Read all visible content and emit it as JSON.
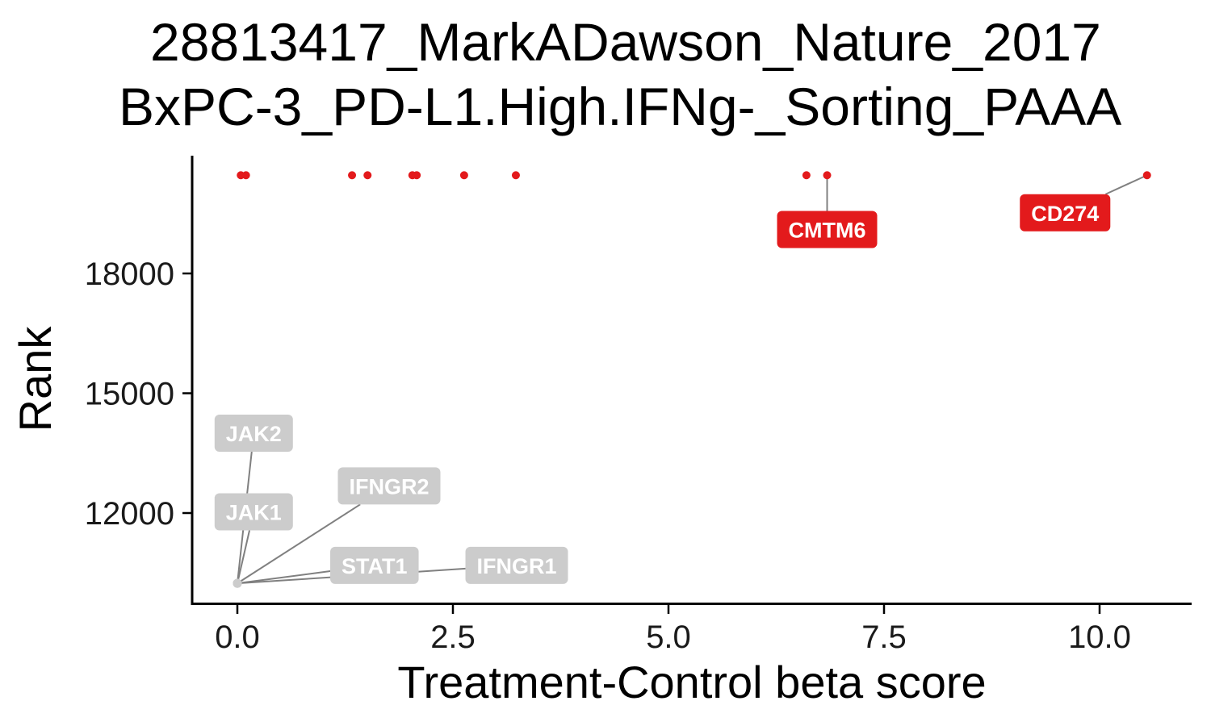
{
  "chart_data": {
    "type": "scatter",
    "title_lines": [
      "28813417_MarkADawson_Nature_2017",
      "BxPC-3_PD-L1.High.IFNg-_Sorting_PAAA"
    ],
    "xlabel": "Treatment-Control beta score",
    "ylabel": "Rank",
    "xlim": [
      -0.1,
      11.1
    ],
    "ylim": [
      9500,
      20400
    ],
    "x_ticks": [
      {
        "value": 0.0,
        "label": "0.0"
      },
      {
        "value": 2.5,
        "label": "2.5"
      },
      {
        "value": 5.0,
        "label": "5.0"
      },
      {
        "value": 7.5,
        "label": "7.5"
      },
      {
        "value": 10.0,
        "label": "10.0"
      }
    ],
    "y_ticks": [
      {
        "value": 12000,
        "label": "12000"
      },
      {
        "value": 15000,
        "label": "15000"
      },
      {
        "value": 18000,
        "label": "18000"
      }
    ],
    "grid": false,
    "colors": {
      "high": "#e31a1c",
      "low": "#cccccc",
      "connector": "#808080",
      "axis": "#000000"
    },
    "top_points": [
      {
        "x": 0.04,
        "y": 20460,
        "label": ""
      },
      {
        "x": 0.1,
        "y": 20460,
        "label": ""
      },
      {
        "x": 1.33,
        "y": 20460,
        "label": ""
      },
      {
        "x": 1.51,
        "y": 20460,
        "label": ""
      },
      {
        "x": 2.03,
        "y": 20460,
        "label": ""
      },
      {
        "x": 2.08,
        "y": 20460,
        "label": ""
      },
      {
        "x": 2.63,
        "y": 20460,
        "label": ""
      },
      {
        "x": 3.23,
        "y": 20460,
        "label": ""
      },
      {
        "x": 6.6,
        "y": 20460,
        "label": ""
      },
      {
        "x": 6.84,
        "y": 20460,
        "label": "CMTM6",
        "label_pos": {
          "x": 6.84,
          "y": 19100
        }
      },
      {
        "x": 10.55,
        "y": 20460,
        "label": "CD274",
        "label_pos": {
          "x": 9.6,
          "y": 19520
        }
      }
    ],
    "bottom_points": [
      {
        "x": 0.0,
        "y": 10240,
        "label": "JAK2",
        "label_pos": {
          "x": 0.19,
          "y": 14000
        }
      },
      {
        "x": 0.0,
        "y": 10240,
        "label": "JAK1",
        "label_pos": {
          "x": 0.19,
          "y": 12030
        }
      },
      {
        "x": 0.0,
        "y": 10240,
        "label": "IFNGR2",
        "label_pos": {
          "x": 1.76,
          "y": 12680
        }
      },
      {
        "x": 0.0,
        "y": 10240,
        "label": "STAT1",
        "label_pos": {
          "x": 1.59,
          "y": 10690
        }
      },
      {
        "x": 0.0,
        "y": 10240,
        "label": "IFNGR1",
        "label_pos": {
          "x": 3.24,
          "y": 10690
        }
      }
    ]
  }
}
